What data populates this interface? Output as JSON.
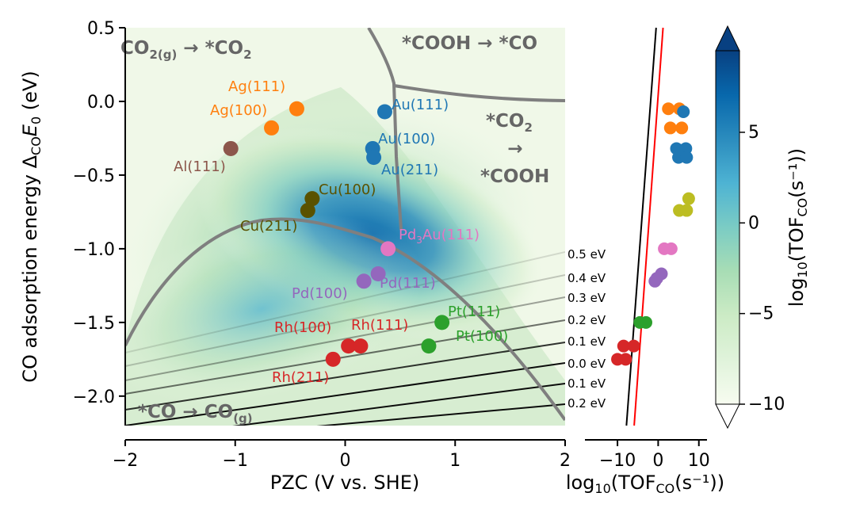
{
  "chart_data": [
    {
      "type": "scatter",
      "panel": "main",
      "xlabel": "PZC (V vs. SHE)",
      "ylabel": "CO adsorption energy ΔCOE0 (eV)",
      "xlim": [
        -2,
        2
      ],
      "ylim": [
        -2.2,
        0.5
      ],
      "xticks": [
        "−2",
        "−1",
        "0",
        "1",
        "2"
      ],
      "yticks": [
        "0.5",
        "0.0",
        "−0.5",
        "−1.0",
        "−1.5",
        "−2.0"
      ],
      "background": "log10(TOF_CO) heatmap",
      "regions": [
        {
          "id": "co2g",
          "parts": [
            "CO",
            "2(g)",
            " → *CO",
            "2"
          ]
        },
        {
          "id": "cooh",
          "parts": [
            "*COOH → *CO"
          ]
        },
        {
          "id": "co2cooh",
          "lines": [
            "*CO",
            "2",
            "→",
            "*COOH"
          ]
        },
        {
          "id": "codes",
          "parts": [
            "*CO → CO",
            "(g)"
          ]
        }
      ],
      "points": [
        {
          "label": "Ag(111)",
          "x": -0.44,
          "y": -0.05,
          "color": "#ff7f0e"
        },
        {
          "label": "Ag(100)",
          "x": -0.67,
          "y": -0.18,
          "color": "#ff7f0e"
        },
        {
          "label": "Al(111)",
          "x": -1.04,
          "y": -0.32,
          "color": "#8c564b"
        },
        {
          "label": "Au(111)",
          "x": 0.36,
          "y": -0.07,
          "color": "#1f77b4"
        },
        {
          "label": "Au(100)",
          "x": 0.25,
          "y": -0.32,
          "color": "#1f77b4"
        },
        {
          "label": "Au(211)",
          "x": 0.26,
          "y": -0.38,
          "color": "#1f77b4"
        },
        {
          "label": "Cu(100)",
          "x": -0.3,
          "y": -0.66,
          "color": "#5a5200"
        },
        {
          "label": "Cu(211)",
          "x": -0.34,
          "y": -0.74,
          "color": "#5a5200"
        },
        {
          "label": "Pd3Au(111)",
          "label_main": "Pd",
          "label_sub": "3",
          "label_rest": "Au(111)",
          "x": 0.39,
          "y": -1.0,
          "color": "#e377c2"
        },
        {
          "label": "Pd(100)",
          "x": 0.17,
          "y": -1.22,
          "color": "#9467bd"
        },
        {
          "label": "Pd(111)",
          "x": 0.3,
          "y": -1.17,
          "color": "#9467bd"
        },
        {
          "label": "Rh(100)",
          "x": 0.03,
          "y": -1.66,
          "color": "#d62728"
        },
        {
          "label": "Rh(111)",
          "x": 0.14,
          "y": -1.66,
          "color": "#d62728"
        },
        {
          "label": "Rh(211)",
          "x": -0.11,
          "y": -1.75,
          "color": "#d62728"
        },
        {
          "label": "Pt(111)",
          "x": 0.88,
          "y": -1.5,
          "color": "#2ca02c"
        },
        {
          "label": "Pt(100)",
          "x": 0.76,
          "y": -1.66,
          "color": "#2ca02c"
        }
      ],
      "contour_labels": [
        "0.5 eV",
        "0.4 eV",
        "0.3 eV",
        "0.2 eV",
        "0.1 eV",
        "0.0 eV",
        "0.1 eV",
        "0.2 eV"
      ]
    },
    {
      "type": "scatter",
      "panel": "side",
      "xlabel_main": "log",
      "xlabel_sub": "10",
      "xlabel_rest": "(TOF",
      "xlabel_sub2": "CO",
      "xlabel_end": "(s⁻¹))",
      "xlim": [
        -18,
        12
      ],
      "xticks": [
        {
          "v": -10,
          "t": "−10"
        },
        {
          "v": 0,
          "t": "0"
        },
        {
          "v": 10,
          "t": "10"
        }
      ],
      "fit_lines": [
        {
          "color": "#000000",
          "x_top": -0.5,
          "x_bottom": -7.8
        },
        {
          "color": "#ff0000",
          "x_top": 1.2,
          "x_bottom": -5.9
        }
      ],
      "points": [
        {
          "x": 2.5,
          "y": -0.05,
          "color": "#ff7f0e"
        },
        {
          "x": 5.2,
          "y": -0.05,
          "color": "#ff7f0e"
        },
        {
          "x": 3.0,
          "y": -0.18,
          "color": "#ff7f0e"
        },
        {
          "x": 5.8,
          "y": -0.18,
          "color": "#ff7f0e"
        },
        {
          "x": 6.2,
          "y": -0.07,
          "color": "#1f77b4"
        },
        {
          "x": 4.5,
          "y": -0.32,
          "color": "#1f77b4"
        },
        {
          "x": 6.8,
          "y": -0.32,
          "color": "#1f77b4"
        },
        {
          "x": 5.0,
          "y": -0.38,
          "color": "#1f77b4"
        },
        {
          "x": 7.0,
          "y": -0.38,
          "color": "#1f77b4"
        },
        {
          "x": 7.5,
          "y": -0.66,
          "color": "#bcbd22"
        },
        {
          "x": 5.2,
          "y": -0.74,
          "color": "#bcbd22"
        },
        {
          "x": 7.0,
          "y": -0.74,
          "color": "#bcbd22"
        },
        {
          "x": 1.5,
          "y": -1.0,
          "color": "#e377c2"
        },
        {
          "x": 3.2,
          "y": -1.0,
          "color": "#e377c2"
        },
        {
          "x": -0.8,
          "y": -1.22,
          "color": "#9467bd"
        },
        {
          "x": 0.8,
          "y": -1.17,
          "color": "#9467bd"
        },
        {
          "x": -0.3,
          "y": -1.2,
          "color": "#9467bd"
        },
        {
          "x": -4.5,
          "y": -1.5,
          "color": "#2ca02c"
        },
        {
          "x": -3.0,
          "y": -1.5,
          "color": "#2ca02c"
        },
        {
          "x": -8.5,
          "y": -1.66,
          "color": "#d62728"
        },
        {
          "x": -6.0,
          "y": -1.66,
          "color": "#d62728"
        },
        {
          "x": -10.0,
          "y": -1.75,
          "color": "#d62728"
        },
        {
          "x": -8.0,
          "y": -1.75,
          "color": "#d62728"
        }
      ]
    },
    {
      "type": "heatmap",
      "panel": "colorbar",
      "label_main": "log",
      "label_sub": "10",
      "label_rest": "(TOF",
      "label_sub2": "CO",
      "label_end": "(s⁻¹))",
      "range": [
        -10,
        9.5
      ],
      "ticks": [
        {
          "v": 5,
          "t": "5"
        },
        {
          "v": 0,
          "t": "0"
        },
        {
          "v": -5,
          "t": "−5"
        },
        {
          "v": -10,
          "t": "−10"
        }
      ],
      "colors": [
        "#f7fcf0",
        "#e0f3db",
        "#ccebc5",
        "#a8ddb5",
        "#7bccc4",
        "#4eb3d3",
        "#2b8cbe",
        "#0868ac",
        "#084081"
      ]
    }
  ]
}
